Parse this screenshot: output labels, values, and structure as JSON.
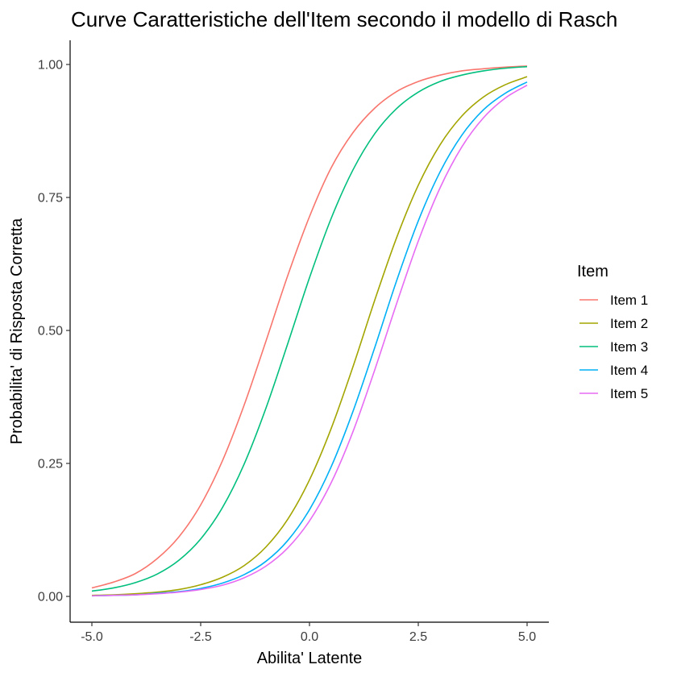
{
  "chart_data": {
    "type": "line",
    "title": "Curve Caratteristiche dell'Item secondo il modello di Rasch",
    "xlabel": "Abilita' Latente",
    "ylabel": "Probabilita' di Risposta Corretta",
    "xlim": [
      -5,
      5
    ],
    "ylim": [
      0,
      1
    ],
    "x_ticks": [
      -5.0,
      -2.5,
      0.0,
      2.5,
      5.0
    ],
    "x_tick_labels": [
      "-5.0",
      "-2.5",
      "0.0",
      "2.5",
      "5.0"
    ],
    "y_ticks": [
      0.0,
      0.25,
      0.5,
      0.75,
      1.0
    ],
    "y_tick_labels": [
      "0.00",
      "0.25",
      "0.50",
      "0.75",
      "1.00"
    ],
    "grid": false,
    "legend": {
      "title": "Item",
      "placement": "right"
    },
    "x": [
      -5.0,
      -4.5,
      -4.0,
      -3.5,
      -3.0,
      -2.5,
      -2.0,
      -1.5,
      -1.0,
      -0.5,
      0.0,
      0.5,
      1.0,
      1.5,
      2.0,
      2.5,
      3.0,
      3.5,
      4.0,
      4.5,
      5.0
    ],
    "series": [
      {
        "name": "Item 1",
        "color": "#F8766D",
        "values": [
          0.016,
          0.027,
          0.043,
          0.071,
          0.112,
          0.172,
          0.255,
          0.36,
          0.48,
          0.603,
          0.714,
          0.806,
          0.872,
          0.918,
          0.949,
          0.968,
          0.98,
          0.988,
          0.992,
          0.995,
          0.997
        ]
      },
      {
        "name": "Item 2",
        "color": "#A3A500",
        "values": [
          0.002,
          0.003,
          0.005,
          0.008,
          0.013,
          0.022,
          0.036,
          0.058,
          0.093,
          0.145,
          0.219,
          0.316,
          0.432,
          0.557,
          0.674,
          0.773,
          0.849,
          0.903,
          0.939,
          0.962,
          0.977
        ]
      },
      {
        "name": "Item 3",
        "color": "#00BF7D",
        "values": [
          0.01,
          0.016,
          0.026,
          0.042,
          0.068,
          0.108,
          0.167,
          0.249,
          0.354,
          0.475,
          0.599,
          0.711,
          0.802,
          0.87,
          0.917,
          0.948,
          0.968,
          0.98,
          0.988,
          0.993,
          0.996
        ]
      },
      {
        "name": "Item 4",
        "color": "#00B0F6",
        "values": [
          0.001,
          0.002,
          0.003,
          0.006,
          0.009,
          0.015,
          0.025,
          0.041,
          0.066,
          0.105,
          0.163,
          0.244,
          0.348,
          0.468,
          0.593,
          0.706,
          0.798,
          0.867,
          0.915,
          0.946,
          0.967
        ]
      },
      {
        "name": "Item 5",
        "color": "#E76BF3",
        "values": [
          0.001,
          0.002,
          0.003,
          0.005,
          0.008,
          0.013,
          0.021,
          0.035,
          0.057,
          0.091,
          0.142,
          0.214,
          0.31,
          0.426,
          0.55,
          0.668,
          0.768,
          0.845,
          0.9,
          0.937,
          0.961
        ]
      }
    ]
  }
}
